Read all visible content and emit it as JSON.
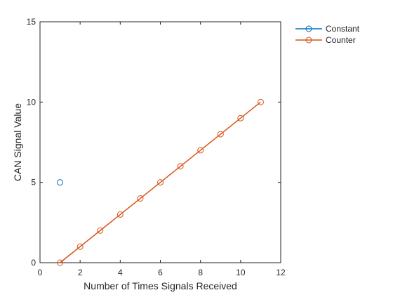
{
  "chart_data": {
    "type": "line",
    "xlabel": "Number of Times Signals Received",
    "ylabel": "CAN Signal Value",
    "xlim": [
      0,
      12
    ],
    "ylim": [
      0,
      15
    ],
    "xticks": [
      "0",
      "2",
      "4",
      "6",
      "8",
      "10",
      "12"
    ],
    "yticks": [
      "0",
      "5",
      "10",
      "15"
    ],
    "grid": false,
    "box": true,
    "legend_position": "outside-right-top",
    "series": [
      {
        "name": "Constant",
        "color": "#0072BD",
        "marker": "circle",
        "x": [
          1
        ],
        "y": [
          5
        ]
      },
      {
        "name": "Counter",
        "color": "#D95319",
        "marker": "circle",
        "x": [
          1,
          2,
          3,
          4,
          5,
          6,
          7,
          8,
          9,
          10,
          11
        ],
        "y": [
          0,
          1,
          2,
          3,
          4,
          5,
          6,
          7,
          8,
          9,
          10
        ]
      }
    ]
  }
}
